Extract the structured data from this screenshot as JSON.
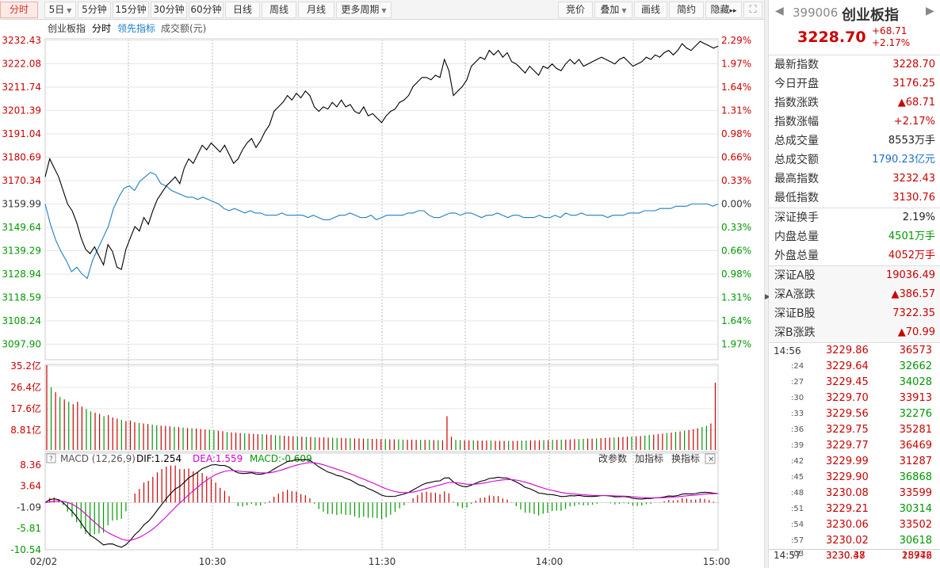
{
  "toolbar": {
    "left": [
      {
        "id": "fenshi",
        "label": "分时",
        "active": true
      },
      {
        "id": "5ri",
        "label": "5日",
        "dropdown": true
      },
      {
        "id": "5min",
        "label": "5分钟"
      },
      {
        "id": "15min",
        "label": "15分钟"
      },
      {
        "id": "30min",
        "label": "30分钟"
      },
      {
        "id": "60min",
        "label": "60分钟"
      },
      {
        "id": "day",
        "label": "日线"
      },
      {
        "id": "week",
        "label": "周线"
      },
      {
        "id": "month",
        "label": "月线"
      },
      {
        "id": "more",
        "label": "更多周期",
        "dropdown": true
      }
    ],
    "right": [
      {
        "id": "jingjia",
        "label": "竞价"
      },
      {
        "id": "diejia",
        "label": "叠加",
        "dropdown": true
      },
      {
        "id": "huaxian",
        "label": "画线"
      },
      {
        "id": "jianyue",
        "label": "简约"
      },
      {
        "id": "yincang",
        "label": "隐藏",
        "icon": "double-chevron-right-icon"
      },
      {
        "id": "full",
        "label": "",
        "icon": "fullscreen-icon"
      }
    ]
  },
  "legend": {
    "name": "创业板指",
    "type": "分时",
    "indicator": "领先指标",
    "volume": "成交额(元)"
  },
  "price_axis": [
    "3232.43",
    "3222.08",
    "3211.74",
    "3201.39",
    "3191.04",
    "3180.69",
    "3170.34",
    "3159.99",
    "3149.64",
    "3139.29",
    "3128.94",
    "3118.59",
    "3108.24",
    "3097.90"
  ],
  "pct_axis": [
    "2.29%",
    "1.97%",
    "1.64%",
    "1.31%",
    "0.98%",
    "0.66%",
    "0.33%",
    "0.00%",
    "0.33%",
    "0.66%",
    "0.98%",
    "1.31%",
    "1.64%",
    "1.97%"
  ],
  "volume_axis": [
    "35.2亿",
    "26.4亿",
    "17.6亿",
    "8.81亿"
  ],
  "macd_axis": [
    "8.36",
    "3.64",
    "-1.09",
    "-5.81",
    "-10.54"
  ],
  "macd_legend": {
    "title": "MACD (12,26,9)",
    "dif": "DIF:1.254",
    "dea": "DEA:1.559",
    "macd": "MACD:-0.609",
    "btn_params": "改参数",
    "btn_add": "加指标",
    "btn_switch": "换指标"
  },
  "time_axis": [
    "02/02",
    "10:30",
    "11:30",
    "14:00",
    "15:00"
  ],
  "colors": {
    "up": "#cc0000",
    "down": "#009900",
    "price_line": "#000000",
    "lead_line": "#1a7fc6",
    "dif": "#000000",
    "dea": "#d400d4",
    "grid": "#e6e6e6"
  },
  "chart_data": {
    "type": "line",
    "prev_close": 3159.99,
    "ylim": [
      3097.9,
      3232.43
    ],
    "price": [
      3172,
      3180,
      3176,
      3172,
      3166,
      3160,
      3157,
      3152,
      3145,
      3140,
      3138,
      3141,
      3137,
      3133,
      3142,
      3139,
      3132,
      3131,
      3140,
      3145,
      3150,
      3148,
      3154,
      3151,
      3157,
      3162,
      3165,
      3168,
      3170,
      3172,
      3169,
      3176,
      3180,
      3178,
      3182,
      3186,
      3184,
      3187,
      3185,
      3183,
      3186,
      3182,
      3178,
      3180,
      3184,
      3187,
      3189,
      3185,
      3188,
      3192,
      3195,
      3201,
      3203,
      3205,
      3208,
      3206,
      3209,
      3207,
      3210,
      3208,
      3203,
      3201,
      3203,
      3202,
      3205,
      3203,
      3206,
      3203,
      3204,
      3201,
      3200,
      3203,
      3199,
      3200,
      3198,
      3196,
      3199,
      3201,
      3202,
      3205,
      3206,
      3208,
      3212,
      3214,
      3216,
      3216,
      3215,
      3217,
      3216,
      3224,
      3219,
      3208,
      3210,
      3212,
      3215,
      3221,
      3223,
      3225,
      3224,
      3228,
      3226,
      3228,
      3225,
      3227,
      3223,
      3222,
      3220,
      3218,
      3221,
      3219,
      3217,
      3221,
      3220,
      3222,
      3220,
      3219,
      3222,
      3224,
      3222,
      3224,
      3221,
      3222,
      3223,
      3224,
      3225,
      3224,
      3223,
      3222,
      3224,
      3225,
      3223,
      3221,
      3222,
      3223,
      3225,
      3224,
      3226,
      3225,
      3227,
      3228,
      3226,
      3228,
      3231,
      3229,
      3228,
      3230,
      3232,
      3231,
      3230,
      3229,
      3229.86
    ],
    "lead": [
      3160,
      3151,
      3144,
      3139,
      3135,
      3130,
      3132,
      3129,
      3127,
      3135,
      3140,
      3145,
      3150,
      3158,
      3163,
      3167,
      3168,
      3166,
      3170,
      3172,
      3174,
      3173,
      3169,
      3168,
      3166,
      3165,
      3164,
      3163,
      3163,
      3162,
      3163,
      3162,
      3161,
      3160,
      3158,
      3157,
      3158,
      3157,
      3156,
      3157,
      3156,
      3156,
      3155,
      3155,
      3155,
      3156,
      3155,
      3155,
      3155,
      3155,
      3154,
      3155,
      3154,
      3153,
      3153,
      3154,
      3155,
      3155,
      3156,
      3155,
      3154,
      3154,
      3155,
      3153,
      3154,
      3155,
      3155,
      3155,
      3155,
      3156,
      3156,
      3157,
      3157,
      3155,
      3154,
      3154,
      3155,
      3156,
      3156,
      3155,
      3156,
      3156,
      3155,
      3154,
      3155,
      3155,
      3156,
      3155,
      3154,
      3155,
      3155,
      3154,
      3154,
      3154,
      3155,
      3154,
      3154,
      3155,
      3154,
      3156,
      3155,
      3155,
      3156,
      3155,
      3155,
      3155,
      3155,
      3154,
      3155,
      3155,
      3155,
      3156,
      3156,
      3156,
      3157,
      3157,
      3157,
      3158,
      3158,
      3158,
      3159,
      3159,
      3159,
      3160,
      3160,
      3160,
      3160,
      3159,
      3160
    ],
    "volume": [
      35.2,
      26,
      24,
      22,
      21,
      20,
      19,
      20,
      18,
      17,
      16,
      15.5,
      15,
      14,
      14.5,
      13.5,
      13,
      12.5,
      12,
      12.2,
      11.5,
      11.2,
      11,
      10.8,
      10.5,
      10.3,
      10.1,
      10,
      9.8,
      9.6,
      9.5,
      9.3,
      9.1,
      9,
      8.9,
      8.7,
      8.5,
      8.4,
      8.2,
      8,
      7.8,
      7.5,
      7.3,
      7.2,
      7,
      6.9,
      6.8,
      6.7,
      6.6,
      6.5,
      6.4,
      6.3,
      6.1,
      6,
      5.9,
      5.8,
      5.7,
      5.6,
      5.5,
      5.4,
      5.4,
      5.3,
      5.2,
      5.2,
      5.1,
      5.1,
      5.0,
      5.0,
      4.9,
      4.9,
      4.8,
      4.8,
      4.7,
      4.7,
      4.6,
      4.6,
      4.5,
      4.5,
      4.4,
      4.4,
      4.4,
      4.3,
      4.3,
      4.3,
      4.2,
      4.2,
      4.2,
      4.2,
      4.1,
      4.1,
      4.0,
      14,
      5.5,
      4.2,
      4.1,
      4.0,
      4.0,
      4.0,
      3.9,
      3.9,
      3.9,
      3.9,
      3.8,
      3.8,
      3.8,
      3.8,
      3.8,
      3.8,
      3.9,
      3.9,
      4.0,
      4.0,
      4.0,
      4.1,
      4.1,
      4.2,
      4.2,
      4.3,
      4.3,
      4.4,
      4.5,
      4.5,
      4.6,
      4.7,
      4.7,
      4.8,
      4.9,
      5.0,
      5.1,
      5.2,
      5.3,
      5.4,
      5.5,
      5.6,
      5.7,
      5.8,
      6.0,
      6.2,
      6.4,
      6.6,
      6.8,
      7.0,
      7.2,
      7.5,
      7.7,
      8.0,
      8.3,
      8.6,
      9.0,
      9.5,
      10,
      11,
      28
    ]
  },
  "panel": {
    "code": "399006",
    "name": "创业板指",
    "price": "3228.70",
    "change": "+68.71",
    "change_pct": "+2.17%",
    "stats1": [
      {
        "k": "最新指数",
        "v": "3228.70",
        "c": "up"
      },
      {
        "k": "今日开盘",
        "v": "3176.25",
        "c": "up"
      },
      {
        "k": "指数涨跌",
        "v": "▲68.71",
        "c": "up"
      },
      {
        "k": "指数涨幅",
        "v": "+2.17%",
        "c": "up"
      },
      {
        "k": "总成交量",
        "v": "8553万手",
        "c": "dark"
      },
      {
        "k": "总成交额",
        "v": "1790.23亿元",
        "c": "blue"
      },
      {
        "k": "最高指数",
        "v": "3232.43",
        "c": "up"
      },
      {
        "k": "最低指数",
        "v": "3130.76",
        "c": "up"
      }
    ],
    "stats2": [
      {
        "k": "深证换手",
        "v": "2.19%",
        "c": "dark"
      },
      {
        "k": "内盘总量",
        "v": "4501万手",
        "c": "down"
      },
      {
        "k": "外盘总量",
        "v": "4052万手",
        "c": "up"
      }
    ],
    "stats3": [
      {
        "k": "深证A股",
        "v": "19036.49",
        "c": "up"
      },
      {
        "k": "深A涨跌",
        "v": "▲386.57",
        "c": "up"
      },
      {
        "k": "深证B股",
        "v": "7322.35",
        "c": "up"
      },
      {
        "k": "深B涨跌",
        "v": "▲70.99",
        "c": "up"
      }
    ],
    "ticks": [
      {
        "t": "14:56",
        "p": "3229.86",
        "v": "36573",
        "vc": "up"
      },
      {
        "t": ":24",
        "p": "3229.64",
        "v": "32662",
        "vc": "down"
      },
      {
        "t": ":27",
        "p": "3229.45",
        "v": "34028",
        "vc": "down"
      },
      {
        "t": ":30",
        "p": "3229.70",
        "v": "33913",
        "vc": "up"
      },
      {
        "t": ":33",
        "p": "3229.56",
        "v": "32276",
        "vc": "down"
      },
      {
        "t": ":36",
        "p": "3229.75",
        "v": "35281",
        "vc": "up"
      },
      {
        "t": ":39",
        "p": "3229.77",
        "v": "36469",
        "vc": "up"
      },
      {
        "t": ":42",
        "p": "3229.99",
        "v": "31287",
        "vc": "up"
      },
      {
        "t": ":45",
        "p": "3229.90",
        "v": "36868",
        "vc": "down"
      },
      {
        "t": ":48",
        "p": "3230.08",
        "v": "33599",
        "vc": "up"
      },
      {
        "t": ":51",
        "p": "3229.21",
        "v": "30314",
        "vc": "down"
      },
      {
        "t": ":54",
        "p": "3230.06",
        "v": "33502",
        "vc": "up"
      },
      {
        "t": ":57",
        "p": "3230.02",
        "v": "30618",
        "vc": "down"
      }
    ],
    "ticks2": [
      {
        "t": "14:57",
        "p": "3230.37",
        "v": "28976",
        "vc": "up"
      },
      {
        "t": ":03",
        "p": "3230.48",
        "v": "15742",
        "vc": "up"
      }
    ]
  }
}
